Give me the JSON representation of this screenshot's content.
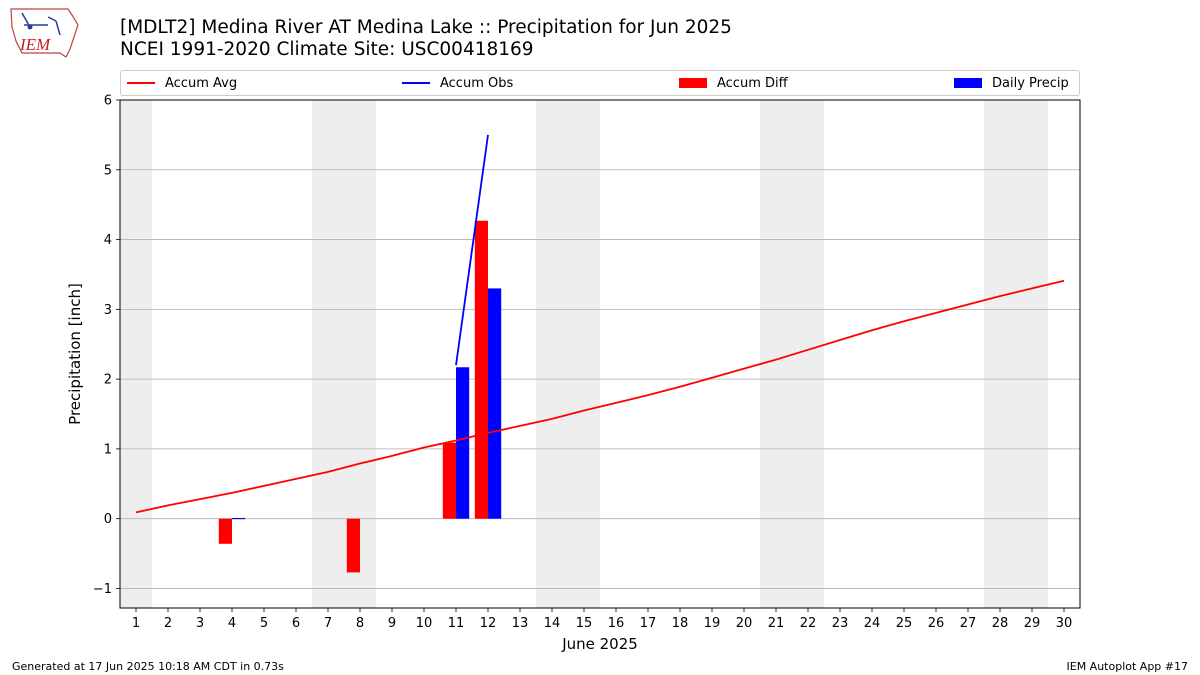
{
  "header": {
    "title_line1": "[MDLT2] Medina River  AT Medina Lake :: Precipitation for Jun 2025",
    "title_line2": "NCEI 1991-2020 Climate Site: USC00418169",
    "logo_text": "IEM"
  },
  "legend": {
    "accum_avg": "Accum Avg",
    "accum_obs": "Accum Obs",
    "accum_diff": "Accum Diff",
    "daily_precip": "Daily Precip"
  },
  "colors": {
    "avg": "#ff0000",
    "obs": "#0000ff",
    "diff": "#ff0000",
    "daily": "#0000ff",
    "weekend": "#eeeeee",
    "grid": "#b0b0b0"
  },
  "footer": {
    "left": "Generated at 17 Jun 2025 10:18 AM CDT in 0.73s",
    "right": "IEM Autoplot App #17"
  },
  "chart_data": {
    "type": "bar",
    "xlabel": "June 2025",
    "ylabel": "Precipitation [inch]",
    "xlim": [
      0.5,
      30.5
    ],
    "ylim": [
      -1.28,
      6
    ],
    "y_ticks": [
      -1,
      0,
      1,
      2,
      3,
      4,
      5,
      6
    ],
    "x": [
      1,
      2,
      3,
      4,
      5,
      6,
      7,
      8,
      9,
      10,
      11,
      12,
      13,
      14,
      15,
      16,
      17,
      18,
      19,
      20,
      21,
      22,
      23,
      24,
      25,
      26,
      27,
      28,
      29,
      30
    ],
    "weekend_spans": [
      [
        0.5,
        1.5
      ],
      [
        6.5,
        8.5
      ],
      [
        13.5,
        15.5
      ],
      [
        20.5,
        22.5
      ],
      [
        27.5,
        29.5
      ]
    ],
    "grid": "horizontal",
    "legend_position": "top",
    "series": [
      {
        "name": "Accum Avg",
        "kind": "line",
        "x": [
          1,
          2,
          3,
          4,
          5,
          6,
          7,
          8,
          9,
          10,
          11,
          12,
          13,
          14,
          15,
          16,
          17,
          18,
          19,
          20,
          21,
          22,
          23,
          24,
          25,
          26,
          27,
          28,
          29,
          30
        ],
        "values": [
          0.09,
          0.19,
          0.28,
          0.37,
          0.47,
          0.57,
          0.67,
          0.79,
          0.9,
          1.02,
          1.12,
          1.23,
          1.33,
          1.43,
          1.55,
          1.66,
          1.77,
          1.89,
          2.02,
          2.15,
          2.28,
          2.42,
          2.56,
          2.7,
          2.83,
          2.95,
          3.07,
          3.19,
          3.3,
          3.41
        ]
      },
      {
        "name": "Accum Obs",
        "kind": "line",
        "x": [
          11,
          12
        ],
        "values": [
          2.2,
          5.5
        ]
      },
      {
        "name": "Accum Diff",
        "kind": "bar",
        "x": [
          4,
          8,
          11,
          12
        ],
        "values": [
          -0.36,
          -0.77,
          1.09,
          4.27
        ]
      },
      {
        "name": "Daily Precip",
        "kind": "bar",
        "x": [
          4,
          11,
          12
        ],
        "values": [
          0.01,
          2.17,
          3.3
        ]
      }
    ]
  }
}
